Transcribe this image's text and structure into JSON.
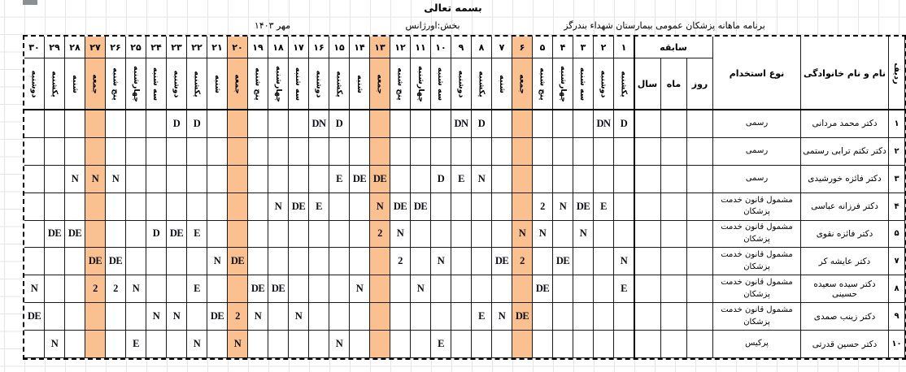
{
  "page": {
    "title": "بسمه تعالی",
    "month_label": "مهر ۱۴۰۳",
    "department_label": "بخش:اورژانس",
    "program_label": "برنامه ماهانه پزشکان عمومی بیمارستان شهداء بندرگز"
  },
  "table": {
    "row_number_header": "ردیف",
    "name_header": "نام و نام خانوادگی",
    "employment_header": "نوع استخدام",
    "history_header": "سابقه",
    "history_sub": [
      "روز",
      "ماه",
      "سال"
    ],
    "highlighted_days": [
      6,
      13,
      20,
      27
    ],
    "highlight_color": "#FAC090",
    "days": [
      {
        "num": "۱",
        "name": "یکشنبه"
      },
      {
        "num": "۲",
        "name": "دوشنبه"
      },
      {
        "num": "۳",
        "name": "سه شنبه"
      },
      {
        "num": "۴",
        "name": "چهارشنبه"
      },
      {
        "num": "۵",
        "name": "پنج شنبه"
      },
      {
        "num": "۶",
        "name": "جمعه"
      },
      {
        "num": "۷",
        "name": "شنبه"
      },
      {
        "num": "۸",
        "name": "یکشنبه"
      },
      {
        "num": "۹",
        "name": "دوشنبه"
      },
      {
        "num": "۱۰",
        "name": "سه شنبه"
      },
      {
        "num": "۱۱",
        "name": "چهارشنبه"
      },
      {
        "num": "۱۲",
        "name": "پنج شنبه"
      },
      {
        "num": "۱۳",
        "name": "جمعه"
      },
      {
        "num": "۱۴",
        "name": "شنبه"
      },
      {
        "num": "۱۵",
        "name": "یکشنبه"
      },
      {
        "num": "۱۶",
        "name": "دوشنبه"
      },
      {
        "num": "۱۷",
        "name": "سه شنبه"
      },
      {
        "num": "۱۸",
        "name": "چهارشنبه"
      },
      {
        "num": "۱۹",
        "name": "پنج شنبه"
      },
      {
        "num": "۲۰",
        "name": "جمعه"
      },
      {
        "num": "۲۱",
        "name": "شنبه"
      },
      {
        "num": "۲۲",
        "name": "یکشنبه"
      },
      {
        "num": "۲۳",
        "name": "دوشنبه"
      },
      {
        "num": "۲۴",
        "name": "سه شنبه"
      },
      {
        "num": "۲۵",
        "name": "چهارشنبه"
      },
      {
        "num": "۲۶",
        "name": "پنج شنبه"
      },
      {
        "num": "۲۷",
        "name": "جمعه"
      },
      {
        "num": "۲۸",
        "name": "شنبه"
      },
      {
        "num": "۲۹",
        "name": "یکشنبه"
      },
      {
        "num": "۳۰",
        "name": "دوشنبه"
      }
    ],
    "rows": [
      {
        "no": "۱",
        "name": "دکتر محمد مردانی",
        "employment": "رسمی",
        "shifts": {
          "1": "D",
          "2": "DN",
          "8": "D",
          "9": "DN",
          "15": "D",
          "16": "DN",
          "22": "D",
          "23": "D"
        }
      },
      {
        "no": "۲",
        "name": "دکتر تکتم ترابی رستمی",
        "employment": "رسمی",
        "shifts": {}
      },
      {
        "no": "۳",
        "name": "دکتر فائزه خورشیدی",
        "employment": "رسمی",
        "shifts": {
          "8": "N",
          "9": "E",
          "10": "D",
          "13": "DE",
          "14": "DE",
          "15": "E",
          "26": "N",
          "27": "N",
          "28": "N"
        }
      },
      {
        "no": "۴",
        "name": "دکتر فرزانه عباسی",
        "employment": "مشمول قانون خدمت پزشکان",
        "shifts": {
          "2": "E",
          "3": "DE",
          "4": "N",
          "5": "2",
          "11": "DE",
          "12": "DE",
          "13": "N",
          "16": "E",
          "17": "DE",
          "18": "N"
        }
      },
      {
        "no": "۵",
        "name": "دکتر فائزه نقوی",
        "employment": "مشمول قانون خدمت پزشکان",
        "shifts": {
          "3": "N",
          "5": "N",
          "6": "N",
          "12": "N",
          "13": "2",
          "22": "E",
          "23": "DE",
          "24": "D",
          "28": "DE",
          "29": "DE"
        }
      },
      {
        "no": "۷",
        "name": "دکتر عایشه کر",
        "employment": "مشمول قانون خدمت پزشکان",
        "shifts": {
          "1": "N",
          "4": "DE",
          "6": "2",
          "7": "DE",
          "10": "N",
          "12": "2",
          "20": "DE",
          "21": "N",
          "26": "DE",
          "27": "DE"
        }
      },
      {
        "no": "۸",
        "name": "دکتر سیده سعیده حسینی",
        "employment": "مشمول قانون خدمت پزشکان",
        "shifts": {
          "1": "E",
          "5": "DE",
          "11": "N",
          "14": "N",
          "18": "DE",
          "19": "DE",
          "22": "E",
          "25": "N",
          "26": "2",
          "27": "2",
          "30": "N"
        }
      },
      {
        "no": "۹",
        "name": "دکتر زینب صمدی",
        "employment": "مشمول قانون خدمت پزشکان",
        "shifts": {
          "6": "DE",
          "7": "N",
          "8": "E",
          "17": "N",
          "19": "N",
          "20": "2",
          "21": "DE",
          "23": "N",
          "24": "N",
          "30": "DE"
        }
      },
      {
        "no": "۱۰",
        "name": "دکتر حسین قدرتی",
        "employment": "پرکیس",
        "shifts": {
          "10": "E",
          "15": "N",
          "20": "N",
          "22": "N",
          "25": "E",
          "29": "N"
        }
      }
    ]
  }
}
